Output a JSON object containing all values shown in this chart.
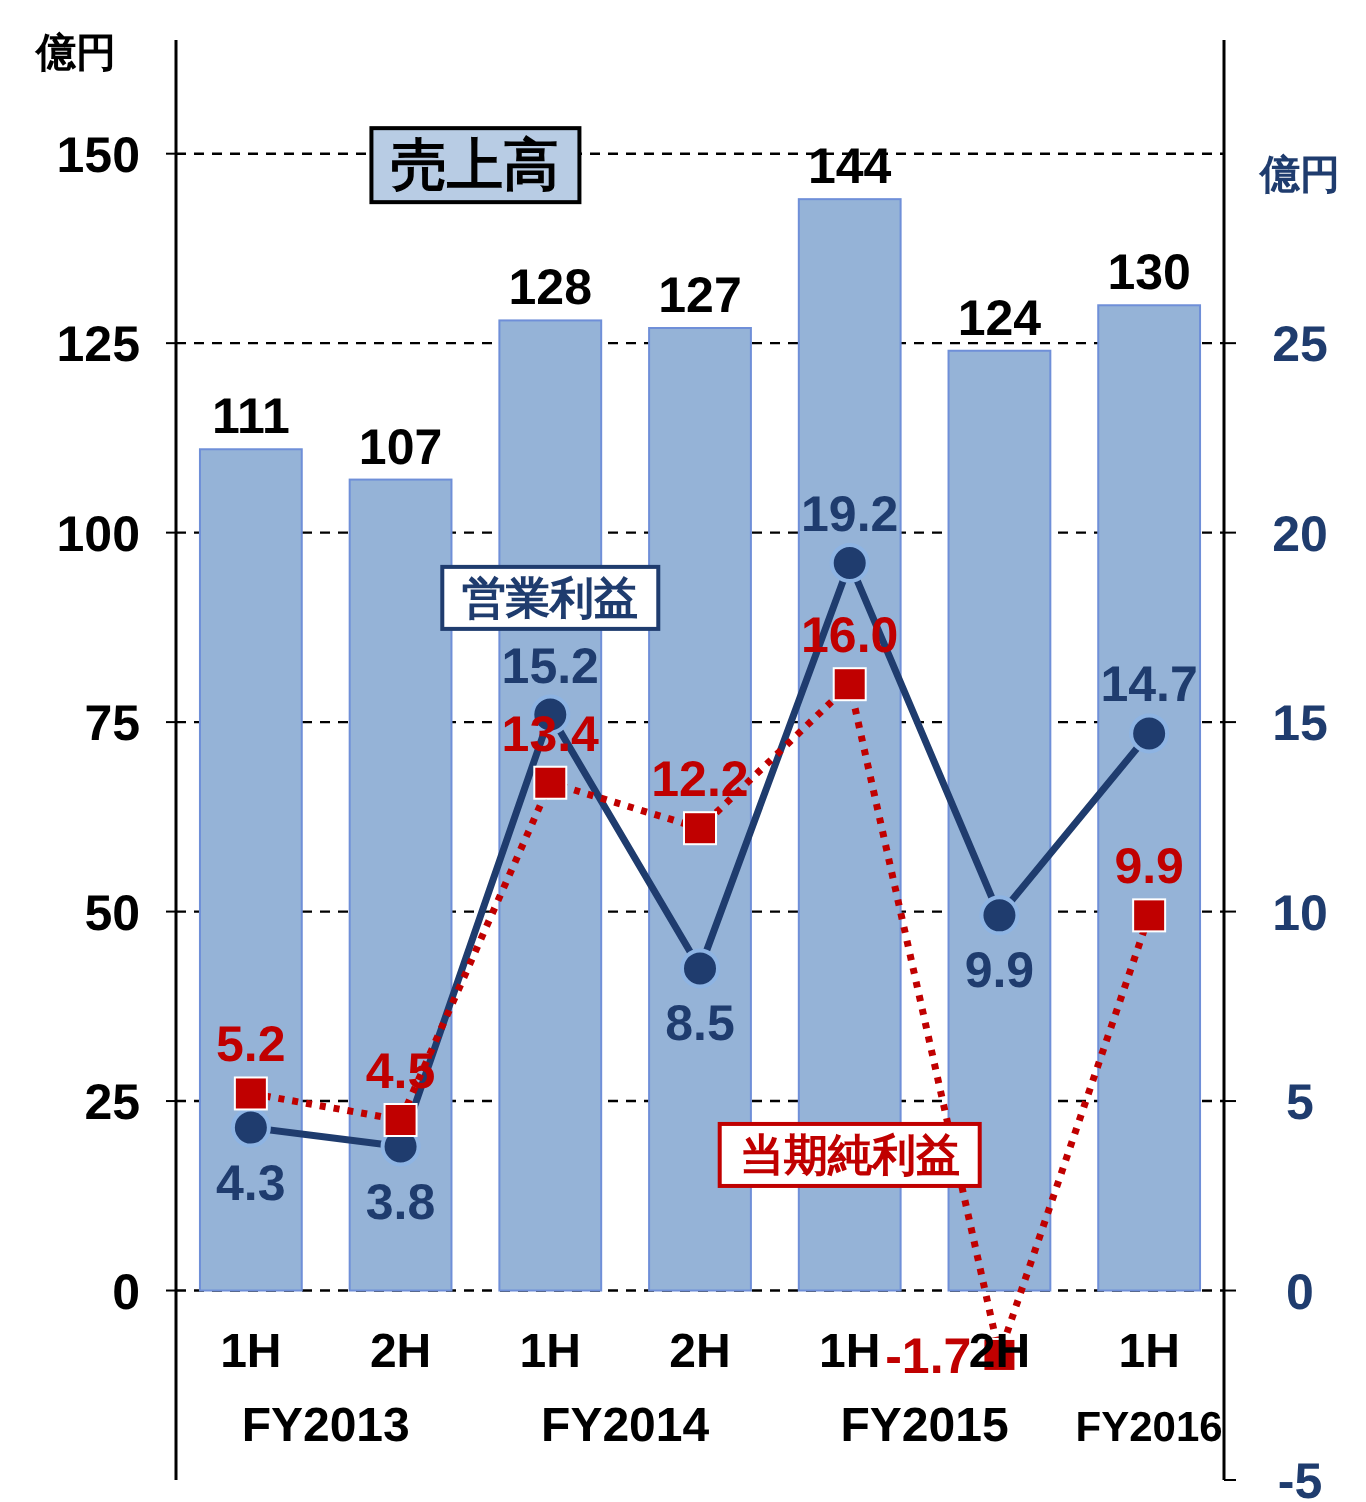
{
  "chart_data": {
    "type": "bar",
    "ylabel": "億円",
    "y2label": "億円",
    "categories": [
      "1H",
      "2H",
      "1H",
      "2H",
      "1H",
      "2H",
      "1H"
    ],
    "series": [
      {
        "name": "売上高",
        "color": "#95b3d7",
        "values": [
          111,
          107,
          128,
          127,
          144,
          124,
          130
        ],
        "value_labels": [
          "111",
          "107",
          "128",
          "127",
          "144",
          "124",
          "130"
        ]
      },
      {
        "name": "営業利益",
        "type": "line",
        "axis": "y2",
        "color": "#1f3c6e",
        "marker": "circle",
        "line_style": "solid",
        "values": [
          4.3,
          3.8,
          15.2,
          8.5,
          19.2,
          9.9,
          14.7
        ],
        "value_labels": [
          "4.3",
          "3.8",
          "15.2",
          "8.5",
          "19.2",
          "9.9",
          "14.7"
        ]
      },
      {
        "name": "当期純利益",
        "type": "line",
        "axis": "y2",
        "color": "#c00000",
        "marker": "square",
        "line_style": "dotted",
        "values": [
          5.2,
          4.5,
          13.4,
          12.2,
          16.0,
          -1.7,
          9.9
        ],
        "value_labels": [
          "5.2",
          "4.5",
          "13.4",
          "12.2",
          "16.0",
          "-1.7",
          "9.9"
        ]
      }
    ],
    "ylim": [
      -25,
      165
    ],
    "yticks": [
      0,
      25,
      50,
      75,
      100,
      125,
      150
    ],
    "y2lim": [
      -5,
      33
    ],
    "y2ticks": [
      -5,
      0,
      5,
      10,
      15,
      20,
      25
    ],
    "grid": "y",
    "legend": false,
    "annotations": [
      "FY2013",
      "FY2014",
      "FY2015",
      "FY2016"
    ]
  }
}
